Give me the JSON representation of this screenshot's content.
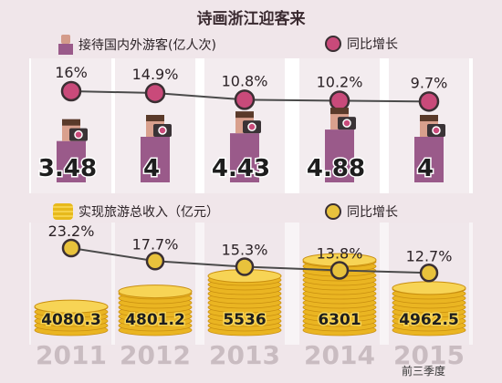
{
  "title": "诗画浙江迎客来",
  "footnote": "前三季度",
  "colors": {
    "background": "#f0e6ea",
    "top_panel": "#ffffff",
    "column_stripe": "#e9dde2",
    "pink_marker": "#c94a7a",
    "gold_marker": "#e8c23c",
    "tourist_body": "#9a5a8a",
    "coin": "#eab522",
    "year_label": "#c9bcc1"
  },
  "chart_data": [
    {
      "type": "line",
      "categories": [
        "2011",
        "2012",
        "2013",
        "2014",
        "2015"
      ],
      "series": [
        {
          "name": "接待国内外游客(亿人次)",
          "values": [
            3.48,
            4,
            4.43,
            4.88,
            4
          ],
          "labels": [
            "3.48",
            "4",
            "4.43",
            "4.88",
            "4"
          ],
          "icon": "tourist-icon"
        },
        {
          "name": "同比增长",
          "values": [
            16,
            14.9,
            10.8,
            10.2,
            9.7
          ],
          "labels": [
            "16%",
            "14.9%",
            "10.8%",
            "10.2%",
            "9.7%"
          ],
          "unit": "%"
        }
      ]
    },
    {
      "type": "line",
      "categories": [
        "2011",
        "2012",
        "2013",
        "2014",
        "2015"
      ],
      "series": [
        {
          "name": "实现旅游总收入（亿元）",
          "values": [
            4080.3,
            4801.2,
            5536,
            6301,
            4962.5
          ],
          "labels": [
            "4080.3",
            "4801.2",
            "5536",
            "6301",
            "4962.5"
          ],
          "icon": "coin-stack-icon"
        },
        {
          "name": "同比增长",
          "values": [
            23.2,
            17.7,
            15.3,
            13.8,
            12.7
          ],
          "labels": [
            "23.2%",
            "17.7%",
            "15.3%",
            "13.8%",
            "12.7%"
          ],
          "unit": "%"
        }
      ]
    }
  ]
}
